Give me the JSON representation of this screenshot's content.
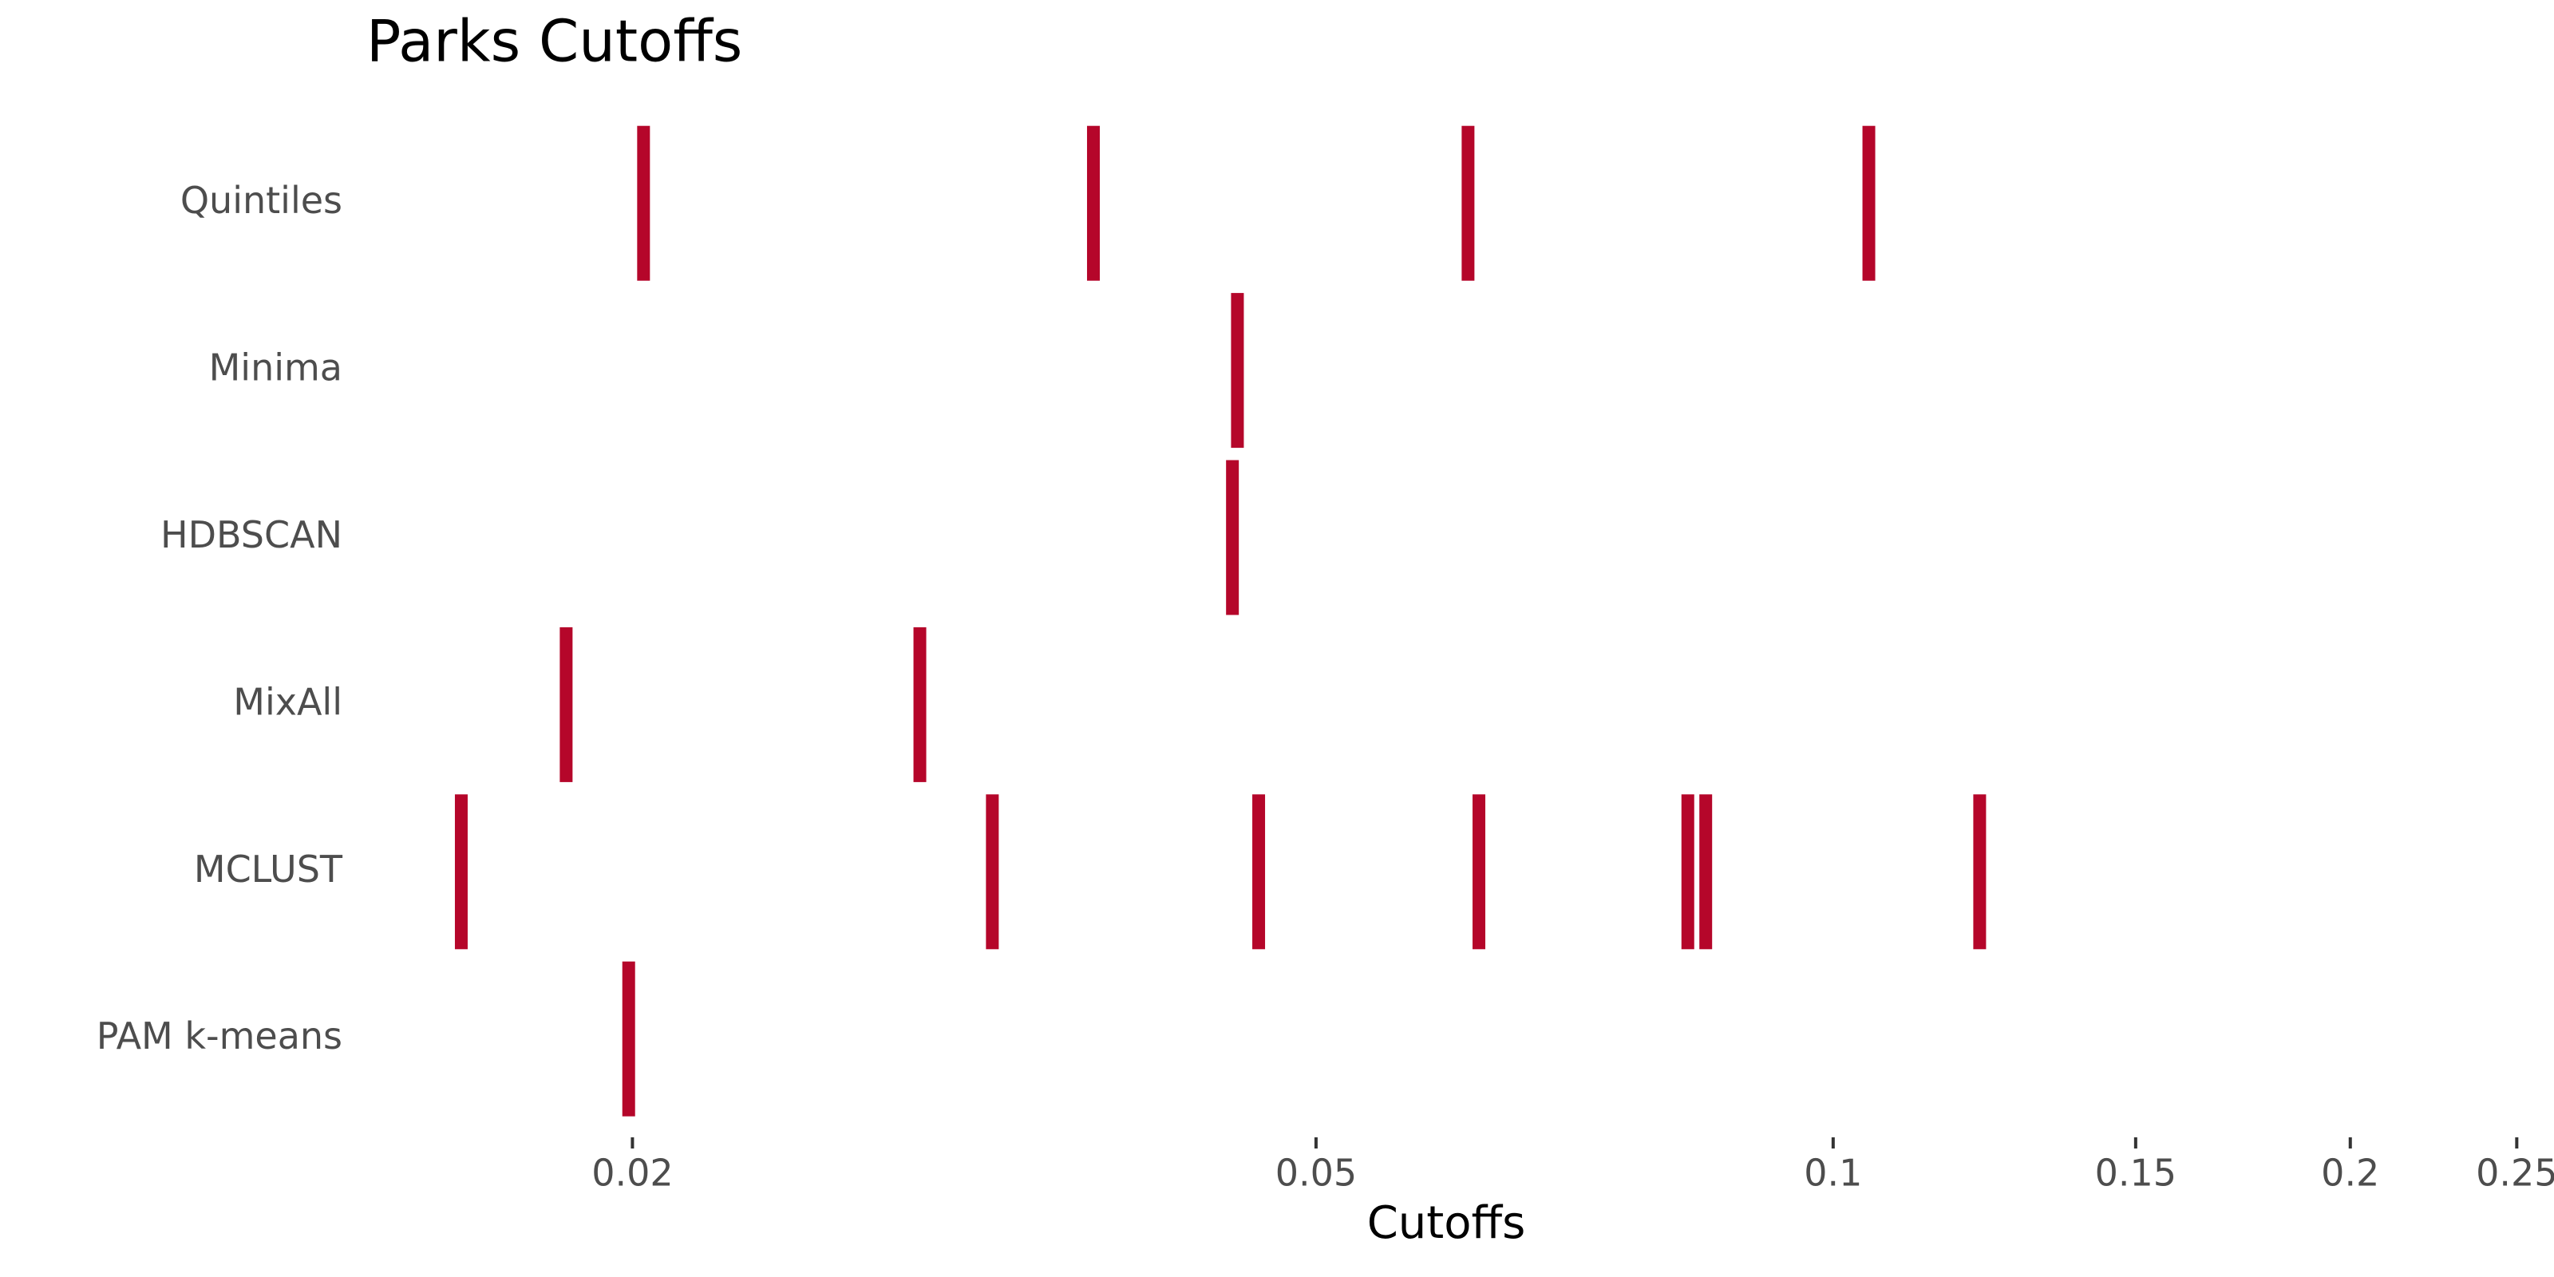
{
  "chart_data": {
    "type": "strip",
    "title": "Parks Cutoffs",
    "x_label": "Cutoffs",
    "categories": [
      "Quintiles",
      "Minima",
      "HDBSCAN",
      "MixAll",
      "MCLUST",
      "PAM k-means"
    ],
    "values": [
      [
        0.0203,
        0.0371,
        0.0613,
        0.1049
      ],
      [
        0.045
      ],
      [
        0.0447
      ],
      [
        0.0183,
        0.0294
      ],
      [
        0.0159,
        0.0324,
        0.0463,
        0.0622,
        0.0823,
        0.0843,
        0.1217
      ],
      [
        0.0199
      ]
    ],
    "color": "#b5062a",
    "xscale": "log",
    "xlim": [
      0.014,
      0.26
    ],
    "xticks": [
      0.02,
      0.05,
      0.1,
      0.15,
      0.2,
      0.25
    ]
  }
}
